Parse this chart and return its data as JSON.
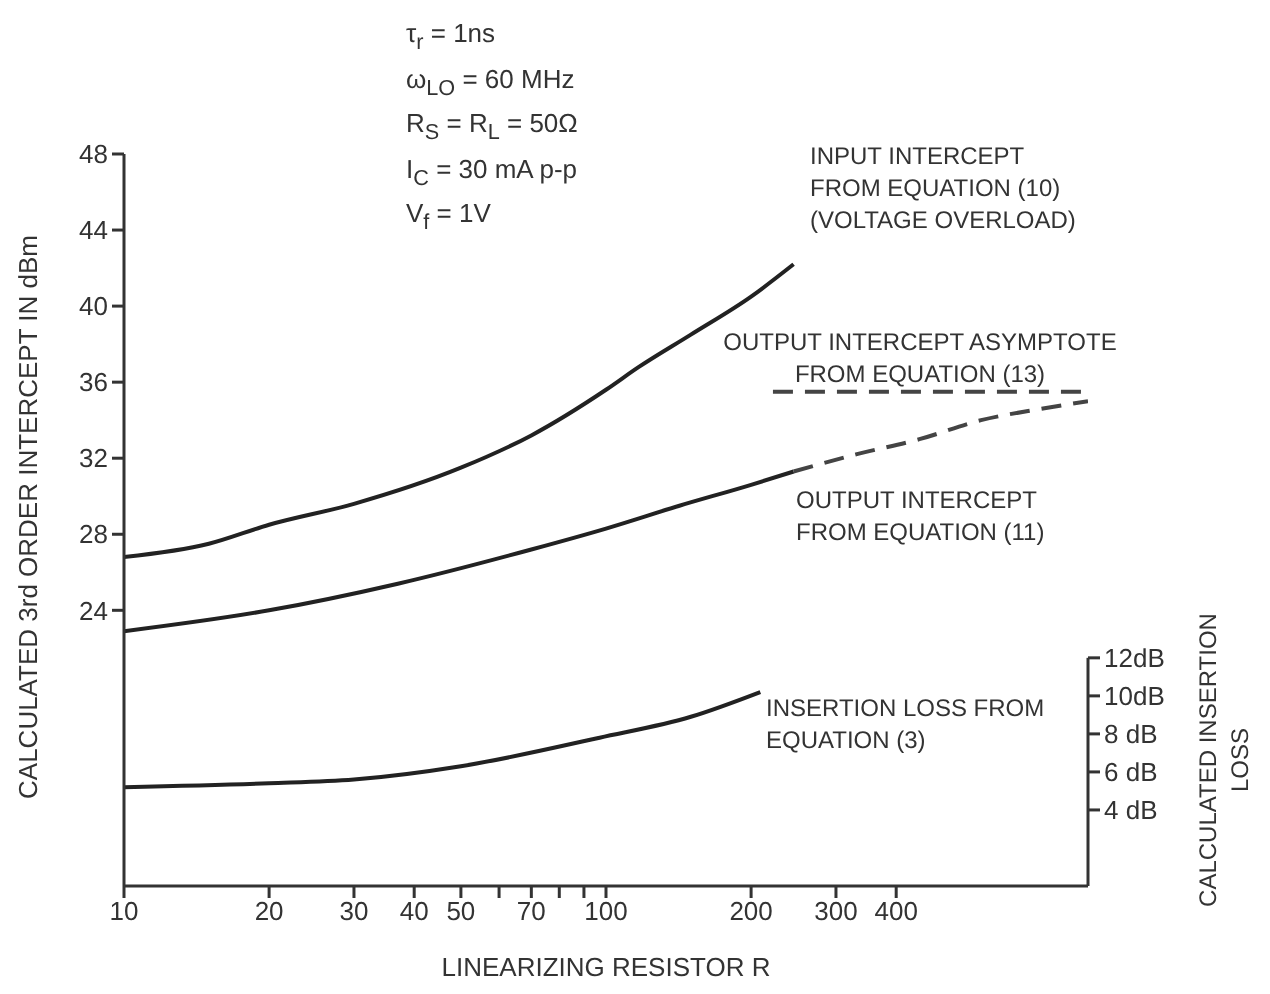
{
  "chart_data": {
    "type": "line",
    "xlabel": "LINEARIZING RESISTOR R",
    "ylabel": "CALCULATED 3rd ORDER INTERCEPT IN dBm",
    "y2label": "CALCULATED INSERTION LOSS",
    "annotations": [
      "τ$_{r}$ = 1ns",
      "ω$_{LO}$ = 60 MHz",
      "R$_{S}$ = R$_{L}$ = 50Ω",
      "I$_{C}$ = 30 mA p-p",
      "V$_{f}$ = 1V"
    ],
    "log": "x",
    "xlim": [
      10,
      1000
    ],
    "xticks": [
      10,
      20,
      30,
      40,
      50,
      {
        "value": 60,
        "label": null
      },
      70,
      {
        "value": 80,
        "label": null
      },
      {
        "value": 90,
        "label": null
      },
      100,
      200,
      300,
      400
    ],
    "ylim": [
      9.5,
      48
    ],
    "yticks": [
      24,
      28,
      32,
      36,
      40,
      44,
      48
    ],
    "y2lim": [
      0,
      38.5
    ],
    "y2ticks": [
      {
        "value": 4,
        "label": "4 dB"
      },
      {
        "value": 6,
        "label": "6 dB"
      },
      {
        "value": 8,
        "label": "8 dB"
      },
      {
        "value": 10,
        "label": "10dB"
      },
      {
        "value": 12,
        "label": "12dB"
      }
    ],
    "marker": "none",
    "series": [
      {
        "name": "INPUT INTERCEPT FROM EQUATION (10) (VOLTAGE OVERLOAD)",
        "color": "#222222",
        "line_style": "solid",
        "x": [
          10,
          15,
          20,
          30,
          50,
          70,
          100,
          117,
          150,
          200,
          245
        ],
        "values": [
          26.8,
          27.5,
          28.5,
          29.6,
          31.5,
          33.2,
          35.6,
          36.8,
          38.5,
          40.5,
          42.2
        ]
      },
      {
        "name": "OUTPUT INTERCEPT ASYMPTOTE FROM EQUATION (13)",
        "color": "#444444",
        "line_style": "dashed",
        "x": [
          222,
          1000
        ],
        "values": [
          35.5,
          35.5
        ]
      },
      {
        "name": "OUTPUT INTERCEPT FROM EQUATION (11)",
        "color": "#222222",
        "line_style": "solid",
        "x": [
          10,
          20,
          37,
          70,
          100,
          142,
          200,
          245
        ],
        "values": [
          22.9,
          24.0,
          25.4,
          27.2,
          28.3,
          29.5,
          30.6,
          31.3
        ]
      },
      {
        "color": "#444444",
        "line_style": "dashed",
        "x": [
          245,
          330,
          447,
          600,
          800,
          1000
        ],
        "values": [
          31.3,
          32.2,
          33.0,
          34.0,
          34.6,
          35.0
        ]
      },
      {
        "name": "INSERTION LOSS FROM EQUATION (3)",
        "color": "#222222",
        "line_style": "solid",
        "axis": "y2",
        "x": [
          10,
          20,
          30,
          50,
          97,
          150,
          209
        ],
        "values": [
          5.2,
          5.4,
          5.6,
          6.3,
          7.8,
          8.9,
          10.2
        ]
      }
    ]
  }
}
